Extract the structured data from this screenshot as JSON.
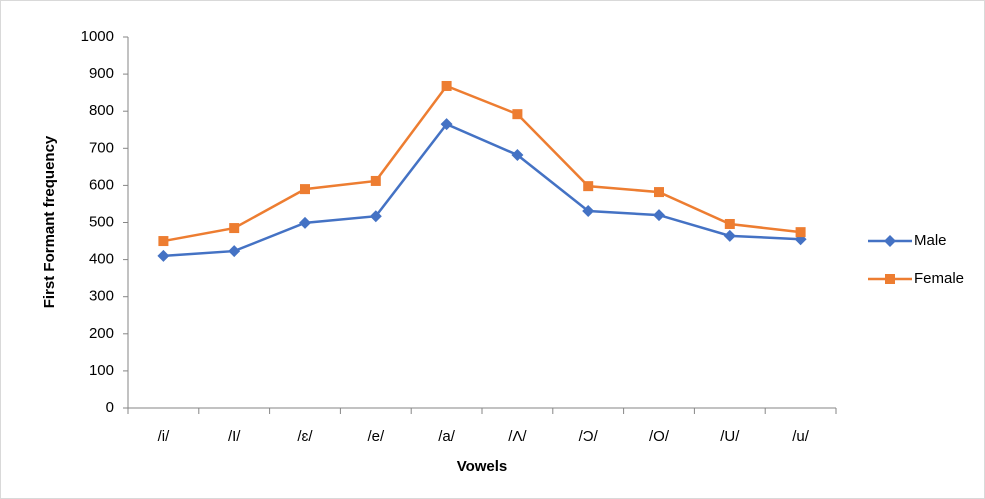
{
  "chart_data": {
    "type": "line",
    "x_label": "Vowels",
    "y_label": "First Formant frequency",
    "categories": [
      "/i/",
      "/I/",
      "/ɛ/",
      "/e/",
      "/a/",
      "/Λ/",
      "/Ɔ/",
      "/O/",
      "/U/",
      "/u/"
    ],
    "series": [
      {
        "name": "Male",
        "color": "#4472c4",
        "marker": "diamond",
        "values": [
          410,
          423,
          499,
          517,
          765,
          682,
          531,
          520,
          464,
          455
        ]
      },
      {
        "name": "Female",
        "color": "#ed7d31",
        "marker": "square",
        "values": [
          450,
          485,
          590,
          612,
          868,
          792,
          598,
          582,
          496,
          474
        ]
      }
    ],
    "ylim": [
      0,
      1000
    ],
    "yticks": [
      0,
      100,
      200,
      300,
      400,
      500,
      600,
      700,
      800,
      900,
      1000
    ],
    "legend": "right"
  }
}
